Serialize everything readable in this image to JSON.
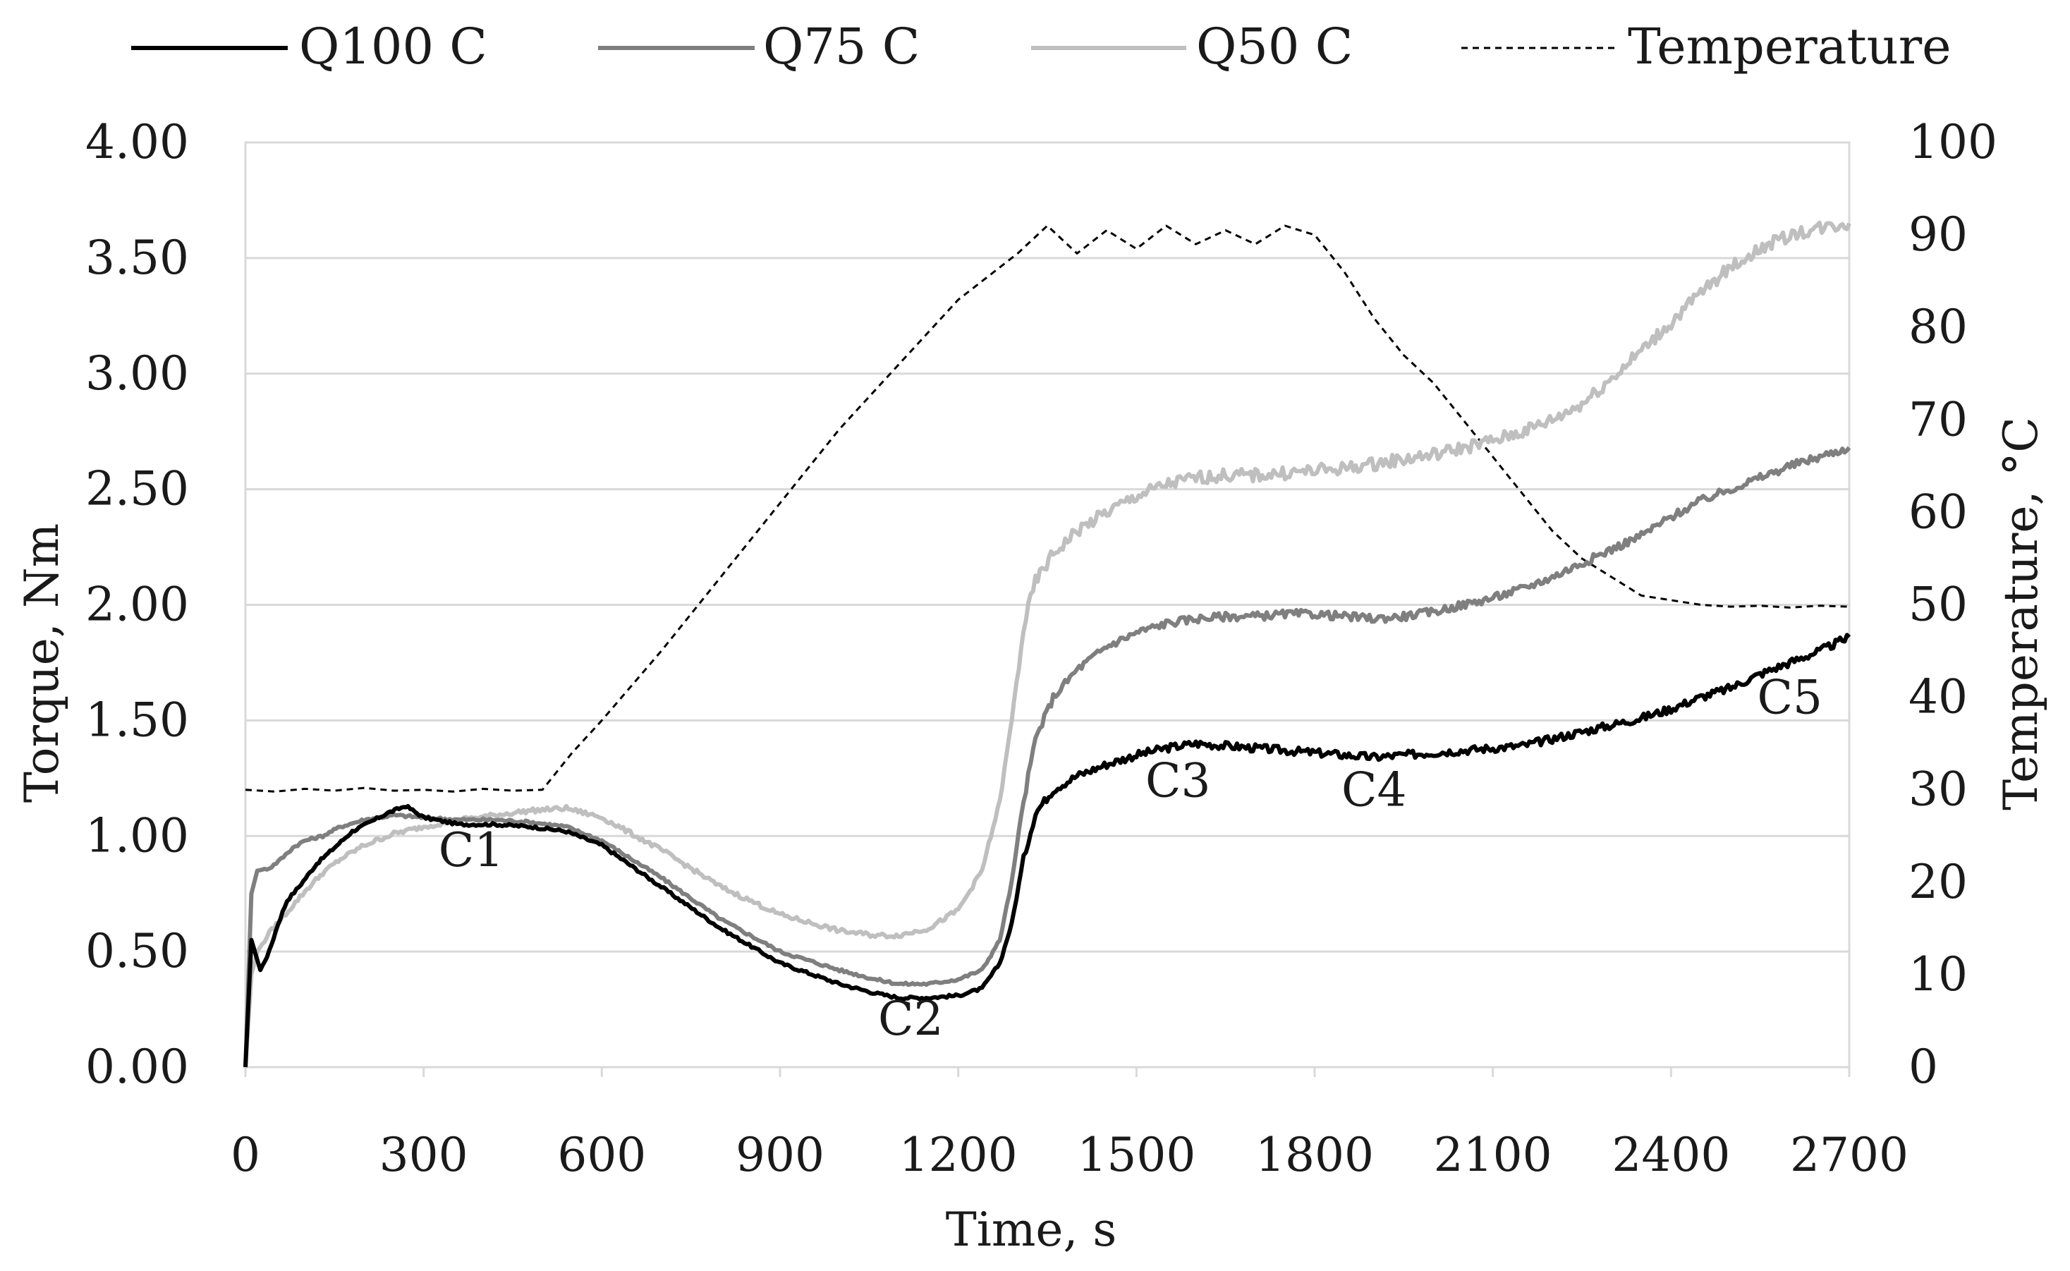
{
  "chart_data": {
    "type": "line",
    "xlabel": "Time, s",
    "ylabel": "Torque, Nm",
    "y2label": "Temperature, °C",
    "xlim": [
      0,
      2700
    ],
    "ylim": [
      0,
      4
    ],
    "y2lim": [
      0,
      100
    ],
    "x_ticks": [
      0,
      300,
      600,
      900,
      1200,
      1500,
      1800,
      2100,
      2400,
      2700
    ],
    "x_tick_labels": [
      "0",
      "300",
      "600",
      "900",
      "1200",
      "1500",
      "1800",
      "2100",
      "2400",
      "2700"
    ],
    "y_ticks": [
      0,
      0.5,
      1,
      1.5,
      2,
      2.5,
      3,
      3.5,
      4
    ],
    "y_tick_labels": [
      "0.00",
      "0.50",
      "1.00",
      "1.50",
      "2.00",
      "2.50",
      "3.00",
      "3.50",
      "4.00"
    ],
    "y2_ticks": [
      0,
      10,
      20,
      30,
      40,
      50,
      60,
      70,
      80,
      90,
      100
    ],
    "y2_tick_labels": [
      "0",
      "10",
      "20",
      "30",
      "40",
      "50",
      "60",
      "70",
      "80",
      "90",
      "100"
    ],
    "grid": true,
    "legend_position": "top",
    "series": [
      {
        "name": "Q100 C",
        "axis": "left",
        "color": "#000000",
        "style": "solid",
        "x": [
          0,
          10,
          25,
          40,
          55,
          70,
          90,
          120,
          150,
          180,
          210,
          240,
          270,
          300,
          360,
          420,
          480,
          540,
          600,
          700,
          800,
          900,
          1000,
          1060,
          1100,
          1150,
          1200,
          1240,
          1270,
          1290,
          1310,
          1330,
          1360,
          1400,
          1450,
          1500,
          1550,
          1600,
          1650,
          1700,
          1750,
          1800,
          1850,
          1900,
          1950,
          2000,
          2050,
          2100,
          2150,
          2200,
          2250,
          2300,
          2350,
          2400,
          2450,
          2500,
          2550,
          2600,
          2650,
          2700
        ],
        "y": [
          0,
          0.55,
          0.42,
          0.5,
          0.62,
          0.72,
          0.78,
          0.88,
          0.95,
          1.02,
          1.06,
          1.1,
          1.13,
          1.08,
          1.05,
          1.05,
          1.04,
          1.02,
          0.96,
          0.78,
          0.6,
          0.45,
          0.36,
          0.32,
          0.3,
          0.3,
          0.31,
          0.34,
          0.45,
          0.62,
          0.9,
          1.1,
          1.2,
          1.26,
          1.31,
          1.35,
          1.38,
          1.4,
          1.39,
          1.38,
          1.37,
          1.36,
          1.35,
          1.34,
          1.35,
          1.36,
          1.37,
          1.38,
          1.39,
          1.42,
          1.45,
          1.48,
          1.51,
          1.55,
          1.6,
          1.64,
          1.7,
          1.75,
          1.8,
          1.86
        ]
      },
      {
        "name": "Q75 C",
        "axis": "left",
        "color": "#7f7f7f",
        "style": "solid",
        "x": [
          0,
          10,
          20,
          40,
          60,
          80,
          100,
          130,
          160,
          200,
          250,
          300,
          360,
          420,
          480,
          540,
          600,
          700,
          800,
          900,
          1000,
          1060,
          1100,
          1150,
          1200,
          1240,
          1270,
          1290,
          1310,
          1330,
          1360,
          1400,
          1450,
          1500,
          1550,
          1600,
          1650,
          1700,
          1750,
          1800,
          1850,
          1900,
          1950,
          2000,
          2050,
          2100,
          2150,
          2200,
          2250,
          2300,
          2350,
          2400,
          2450,
          2500,
          2550,
          2600,
          2650,
          2700
        ],
        "y": [
          0,
          0.75,
          0.85,
          0.86,
          0.9,
          0.95,
          0.98,
          1.0,
          1.04,
          1.07,
          1.09,
          1.08,
          1.07,
          1.07,
          1.06,
          1.04,
          0.98,
          0.82,
          0.64,
          0.5,
          0.42,
          0.38,
          0.36,
          0.36,
          0.38,
          0.42,
          0.55,
          0.8,
          1.15,
          1.42,
          1.6,
          1.72,
          1.82,
          1.88,
          1.92,
          1.94,
          1.95,
          1.95,
          1.96,
          1.96,
          1.95,
          1.94,
          1.95,
          1.97,
          2.0,
          2.03,
          2.07,
          2.12,
          2.18,
          2.24,
          2.3,
          2.38,
          2.45,
          2.5,
          2.55,
          2.6,
          2.64,
          2.68
        ]
      },
      {
        "name": "Q50 C",
        "axis": "left",
        "color": "#bfbfbf",
        "style": "solid",
        "x": [
          0,
          10,
          20,
          40,
          60,
          80,
          100,
          130,
          160,
          200,
          250,
          300,
          360,
          420,
          480,
          540,
          600,
          700,
          800,
          900,
          1000,
          1060,
          1100,
          1150,
          1200,
          1240,
          1270,
          1290,
          1310,
          1330,
          1360,
          1400,
          1450,
          1500,
          1550,
          1600,
          1650,
          1700,
          1750,
          1800,
          1850,
          1900,
          1950,
          2000,
          2050,
          2100,
          2150,
          2200,
          2250,
          2300,
          2350,
          2400,
          2450,
          2500,
          2550,
          2600,
          2650,
          2700
        ],
        "y": [
          0,
          0.4,
          0.5,
          0.58,
          0.64,
          0.7,
          0.76,
          0.84,
          0.9,
          0.96,
          1.01,
          1.04,
          1.07,
          1.09,
          1.11,
          1.12,
          1.08,
          0.94,
          0.78,
          0.66,
          0.59,
          0.57,
          0.57,
          0.6,
          0.68,
          0.85,
          1.15,
          1.5,
          1.9,
          2.1,
          2.22,
          2.32,
          2.4,
          2.47,
          2.52,
          2.55,
          2.56,
          2.56,
          2.57,
          2.58,
          2.59,
          2.61,
          2.63,
          2.65,
          2.68,
          2.71,
          2.75,
          2.8,
          2.87,
          2.98,
          3.1,
          3.22,
          3.35,
          3.46,
          3.54,
          3.6,
          3.63,
          3.65
        ]
      },
      {
        "name": "Temperature",
        "axis": "right",
        "color": "#000000",
        "style": "dashed",
        "x": [
          0,
          50,
          100,
          150,
          200,
          250,
          300,
          350,
          400,
          450,
          500,
          550,
          600,
          700,
          800,
          900,
          1000,
          1100,
          1200,
          1300,
          1350,
          1400,
          1450,
          1500,
          1550,
          1600,
          1650,
          1700,
          1750,
          1800,
          1850,
          1900,
          1950,
          2000,
          2050,
          2100,
          2150,
          2200,
          2250,
          2300,
          2350,
          2400,
          2450,
          2500,
          2550,
          2600,
          2650,
          2700
        ],
        "y": [
          30,
          29.8,
          30.1,
          29.9,
          30.2,
          29.9,
          30,
          29.8,
          30.1,
          29.9,
          30,
          34,
          37.5,
          45,
          53,
          61,
          69,
          76,
          83,
          88,
          91,
          88,
          90.5,
          88.5,
          91,
          89,
          90.5,
          89,
          91,
          90,
          86,
          81,
          77,
          74,
          70,
          66,
          62,
          58,
          55,
          53,
          51,
          50.5,
          50,
          49.8,
          49.9,
          49.7,
          49.9,
          49.8
        ]
      }
    ],
    "annotations": [
      {
        "text": "C1",
        "x": 380,
        "y": 0.87
      },
      {
        "text": "C2",
        "x": 1120,
        "y": 0.14
      },
      {
        "text": "C3",
        "x": 1570,
        "y": 1.17
      },
      {
        "text": "C4",
        "x": 1900,
        "y": 1.13
      },
      {
        "text": "C5",
        "x": 2600,
        "y": 1.53
      }
    ]
  }
}
